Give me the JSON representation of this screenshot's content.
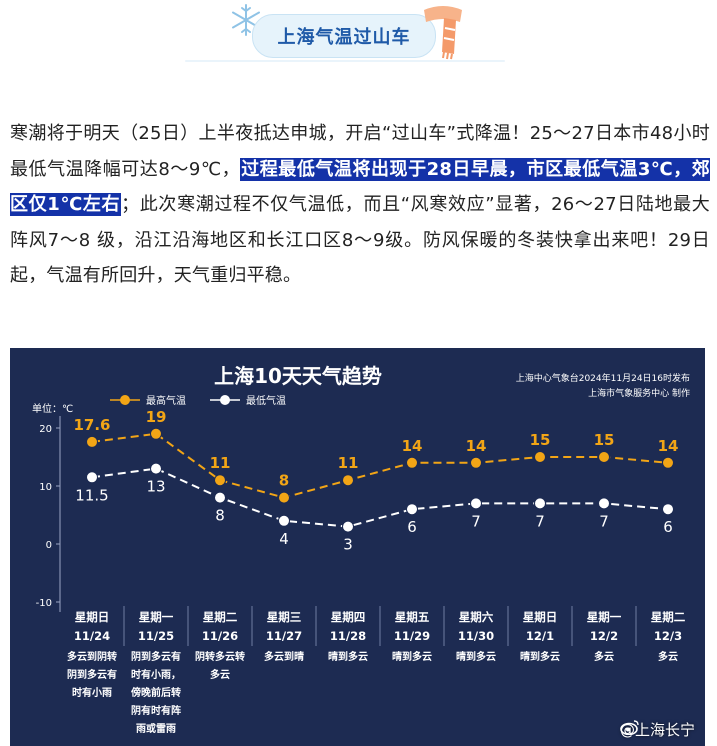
{
  "header": {
    "title": "上海气温过山车"
  },
  "paragraph": {
    "before": "寒潮将于明天（25日）上半夜抵达申城，开启“过山车”式降温！25～27日本市48小时最低气温降幅可达8～9℃，",
    "highlight": "过程最低气温将出现于28日早晨，市区最低气温3℃，郊区仅1℃左右",
    "after": "；此次寒潮过程不仅气温低，而且“风寒效应”显著，26～27日陆地最大阵风7～8 级，沿江沿海地区和长江口区8～9级。防风保暖的冬装快拿出来吧！29日起，气温有所回升，天气重归平稳。"
  },
  "colors": {
    "panel_bg": "#1d2b52",
    "high": "#f2a516",
    "low": "#ffffff",
    "highlight_bg": "#1432a8",
    "title": "#1f5aa8"
  },
  "chart_data": {
    "type": "line",
    "title": "上海10天天气趋势",
    "source_line1": "上海中心气象台2024年11月24日16时发布",
    "source_line2": "上海市气象服务中心 制作",
    "ylabel": "单位：℃",
    "ylim": [
      -10,
      20
    ],
    "yticks": [
      "20",
      "10",
      "0",
      "-10"
    ],
    "grid": false,
    "legend_position": "top-left",
    "categories": [
      {
        "weekday": "星期日",
        "date": "11/24",
        "weather": [
          "多云到阴转",
          "阴到多云有",
          "时有小雨"
        ]
      },
      {
        "weekday": "星期一",
        "date": "11/25",
        "weather": [
          "阴到多云有",
          "时有小雨，",
          "傍晚前后转",
          "阴有时有阵",
          "雨或雷雨"
        ]
      },
      {
        "weekday": "星期二",
        "date": "11/26",
        "weather": [
          "阴转多云转",
          "多云"
        ]
      },
      {
        "weekday": "星期三",
        "date": "11/27",
        "weather": [
          "多云到晴"
        ]
      },
      {
        "weekday": "星期四",
        "date": "11/28",
        "weather": [
          "晴到多云"
        ]
      },
      {
        "weekday": "星期五",
        "date": "11/29",
        "weather": [
          "晴到多云"
        ]
      },
      {
        "weekday": "星期六",
        "date": "11/30",
        "weather": [
          "晴到多云"
        ]
      },
      {
        "weekday": "星期日",
        "date": "12/1",
        "weather": [
          "晴到多云"
        ]
      },
      {
        "weekday": "星期一",
        "date": "12/2",
        "weather": [
          "多云"
        ]
      },
      {
        "weekday": "星期二",
        "date": "12/3",
        "weather": [
          "多云"
        ]
      }
    ],
    "series": [
      {
        "name": "最高气温",
        "values": [
          17.6,
          19,
          11,
          8,
          11,
          14,
          14,
          15,
          15,
          14
        ]
      },
      {
        "name": "最低气温",
        "values": [
          11.5,
          13,
          8,
          4,
          3,
          6,
          7,
          7,
          7,
          6
        ]
      }
    ]
  },
  "watermark": {
    "text": "@上海长宁"
  }
}
